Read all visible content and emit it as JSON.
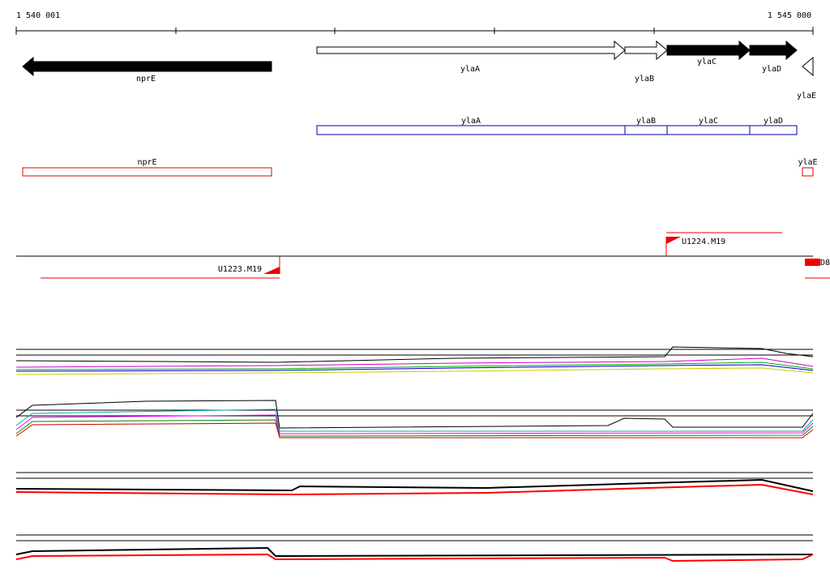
{
  "ruler": {
    "start": "1 540 001",
    "end": "1 545 000"
  },
  "genes": [
    {
      "label": "nprE"
    },
    {
      "label": "ylaA"
    },
    {
      "label": "ylaB"
    },
    {
      "label": "ylaC"
    },
    {
      "label": "ylaD"
    },
    {
      "label": "ylaE"
    }
  ],
  "operons": [
    {
      "label": "ylaA"
    },
    {
      "label": "ylaB"
    },
    {
      "label": "ylaC"
    },
    {
      "label": "ylaD"
    }
  ],
  "terminators": [
    {
      "label": "nprE"
    },
    {
      "label": "ylaE"
    }
  ],
  "transcription_units": [
    {
      "label": "U1224.M19"
    },
    {
      "label": "U1223.M19"
    },
    {
      "label": "D8"
    }
  ]
}
